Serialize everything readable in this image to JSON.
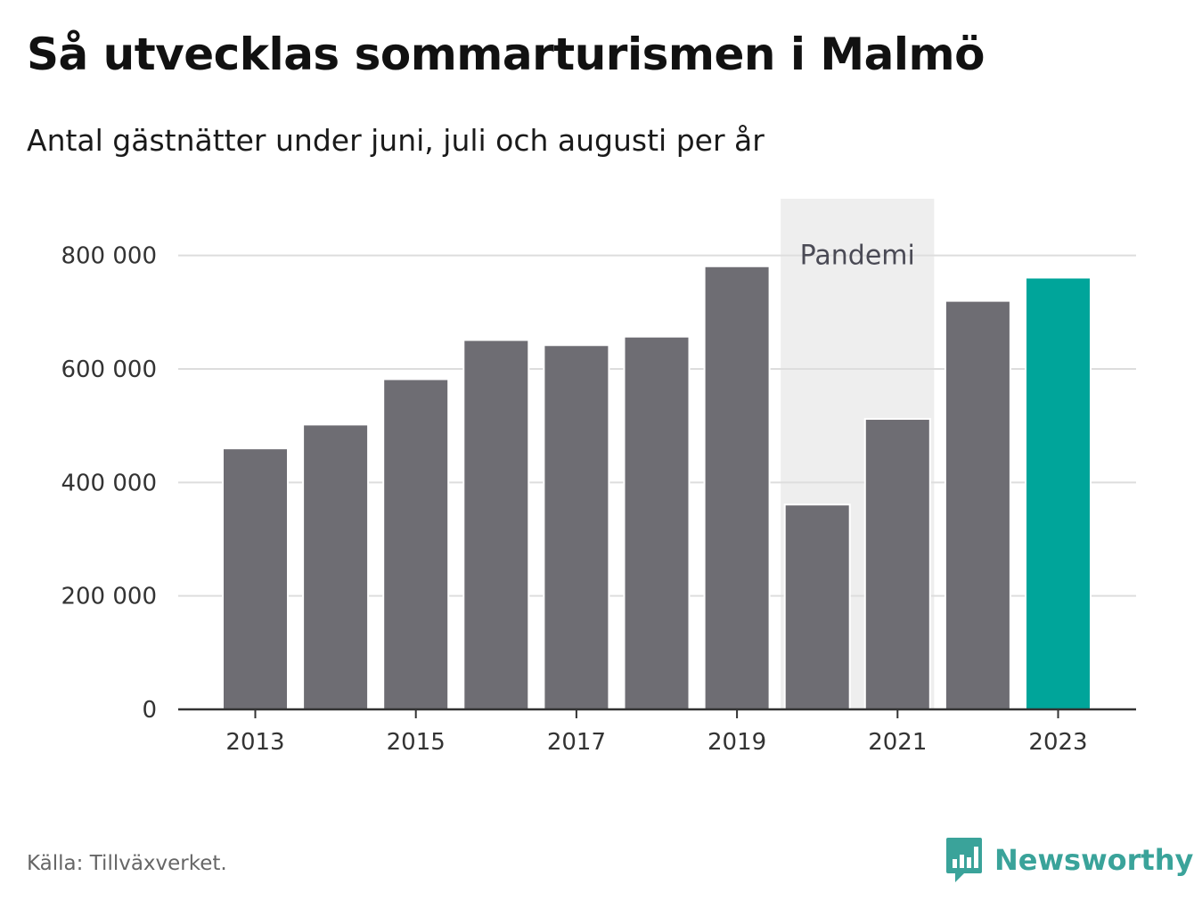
{
  "header": {
    "title": "Så utvecklas sommarturismen i Malmö",
    "subtitle": "Antal gästnätter under juni, juli och augusti per år"
  },
  "chart_data": {
    "type": "bar",
    "categories": [
      "2013",
      "2014",
      "2015",
      "2016",
      "2017",
      "2018",
      "2019",
      "2020",
      "2021",
      "2022",
      "2023"
    ],
    "values": [
      460000,
      502000,
      582000,
      651000,
      642000,
      657000,
      781000,
      361000,
      512000,
      720000,
      761000
    ],
    "x_tick_labels": [
      "2013",
      "2015",
      "2017",
      "2019",
      "2021",
      "2023"
    ],
    "y_ticks": [
      0,
      200000,
      400000,
      600000,
      800000
    ],
    "y_tick_labels": [
      "0",
      "200 000",
      "400 000",
      "600 000",
      "800 000"
    ],
    "ylim": [
      0,
      900000
    ],
    "grid": true,
    "xlabel": "",
    "ylabel": "",
    "highlight_category": "2023",
    "annotation": {
      "label": "Pandemi",
      "from": "2020",
      "to": "2021"
    },
    "colors": {
      "bar": "#6e6d73",
      "highlight": "#00a59a",
      "band": "#eeeeee",
      "grid": "#dddddd",
      "axis": "#333333"
    }
  },
  "footer": {
    "source": "Källa: Tillväxverket.",
    "brand": "Newsworthy",
    "brand_icon": "newsworthy-logo-icon",
    "brand_color": "#3aa39a"
  }
}
